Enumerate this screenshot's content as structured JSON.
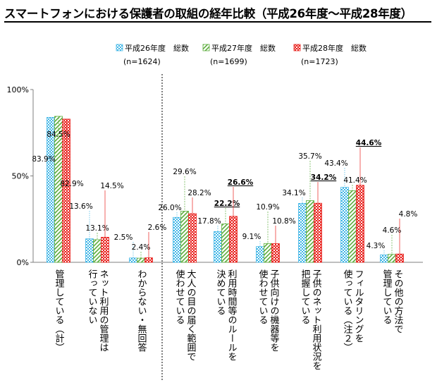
{
  "chart_data": {
    "type": "bar",
    "title": "スマートフォンにおける保護者の取組の経年比較（平成26年度～平成28年度）",
    "yticks": [
      "0%",
      "50%",
      "100%"
    ],
    "ylim": [
      0,
      100
    ],
    "grid": false,
    "legend_position": "top",
    "series": [
      {
        "name": "平成26年度　総数",
        "n_label": "(n=1624)",
        "pattern": "dots",
        "color": "#41b6e6",
        "values": [
          83.9,
          13.6,
          2.5,
          26.0,
          17.8,
          9.1,
          34.1,
          43.4,
          4.3
        ],
        "value_labels": [
          "83.9%",
          "13.6%",
          "2.5%",
          "26.0%",
          "17.8%",
          "9.1%",
          "34.1%",
          "43.4%",
          "4.3%"
        ]
      },
      {
        "name": "平成27年度　総数",
        "n_label": "(n=1699)",
        "pattern": "stripes",
        "color": "#5aac3a",
        "values": [
          84.5,
          13.1,
          2.4,
          29.6,
          22.2,
          10.9,
          35.7,
          41.4,
          4.6
        ],
        "value_labels": [
          "84.5%",
          "13.1%",
          "2.4%",
          "29.6%",
          "22.2%",
          "10.9%",
          "35.7%",
          "41.4%",
          "4.6%"
        ]
      },
      {
        "name": "平成28年度　総数",
        "n_label": "(n=1723)",
        "pattern": "checker",
        "color": "#e8201c",
        "values": [
          82.9,
          14.5,
          2.6,
          28.2,
          26.6,
          10.8,
          34.2,
          44.6,
          4.8
        ],
        "value_labels": [
          "82.9%",
          "14.5%",
          "2.6%",
          "28.2%",
          "26.6%",
          "10.8%",
          "34.2%",
          "44.6%",
          "4.8%"
        ]
      }
    ],
    "bold_labels": [
      [
        1,
        4
      ],
      [
        2,
        4
      ],
      [
        2,
        6
      ],
      [
        2,
        7
      ]
    ],
    "categories": [
      "管理している(計)",
      "ネット利用の管理は行っていない",
      "わからない・無回答",
      "大人の目の届く範囲で使わせている",
      "利用時間等のルールを決めている",
      "子供向けの機器等を使わせている",
      "子供のネット利用状況を把握している",
      "フィルタリングを使っている（注２）",
      "その他の方法で管理している"
    ],
    "category_lines": [
      [
        "管理している（計）"
      ],
      [
        "ネット利用の管理は",
        "行っていない"
      ],
      [
        "わからない・無回答"
      ],
      [
        "大人の目の届く範囲で",
        "使わせている"
      ],
      [
        "利用時間等のルールを",
        "決めている"
      ],
      [
        "子供向けの機器等を",
        "使わせている"
      ],
      [
        "子供のネット利用状況を",
        "把握している"
      ],
      [
        "フィルタリングを",
        "使っている（注２）"
      ],
      [
        "その他の方法で",
        "管理している"
      ]
    ],
    "label_positions_note": "value labels placed above bars; see template script"
  }
}
